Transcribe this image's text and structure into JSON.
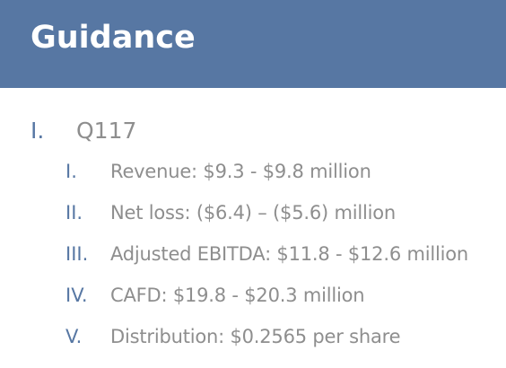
{
  "header": {
    "title": "Guidance",
    "background_color": "#5777a3",
    "title_color": "#ffffff"
  },
  "outline": {
    "number_color": "#5777a3",
    "text_color": "#8e8e8e",
    "section": {
      "number": "I.",
      "label": "Q117"
    },
    "items": [
      {
        "number": "I.",
        "text": "Revenue:  $9.3 - $9.8 million"
      },
      {
        "number": "II.",
        "text": "Net loss:  ($6.4) – ($5.6) million"
      },
      {
        "number": "III.",
        "text": "Adjusted EBITDA: $11.8 - $12.6 million"
      },
      {
        "number": "IV.",
        "text": "CAFD:  $19.8 - $20.3 million"
      },
      {
        "number": "V.",
        "text": "Distribution:  $0.2565 per share"
      }
    ]
  }
}
